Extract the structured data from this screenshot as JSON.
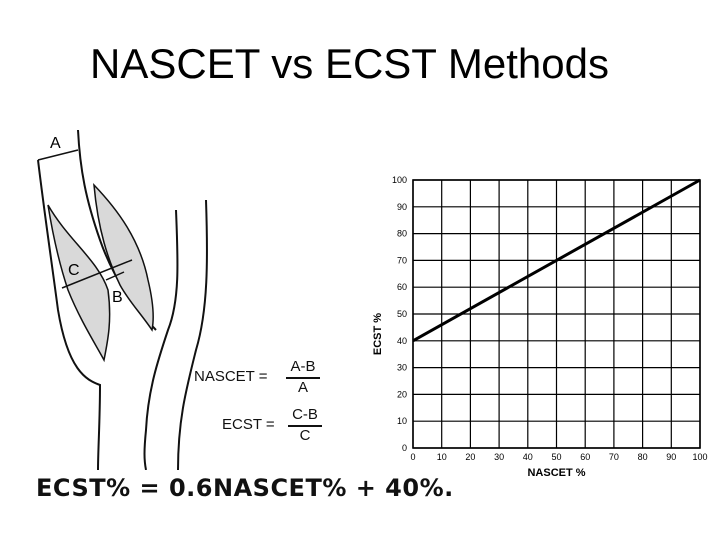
{
  "slide": {
    "title": "NASCET vs ECST Methods"
  },
  "diagram": {
    "labels": {
      "a": "A",
      "b": "B",
      "c": "C"
    }
  },
  "formulas": {
    "nascet": {
      "lhs": "NASCET =",
      "numerator": "A-B",
      "denominator": "A"
    },
    "ecst": {
      "lhs": "ECST =",
      "numerator": "C-B",
      "denominator": "C"
    },
    "conversion": "ECST% = 0.6NASCET% + 40%."
  },
  "chart_data": {
    "type": "line",
    "title": "",
    "xlabel": "NASCET %",
    "ylabel": "ECST %",
    "xlim": [
      0,
      100
    ],
    "ylim": [
      0,
      100
    ],
    "grid": true,
    "x_ticks": [
      0,
      10,
      20,
      30,
      40,
      50,
      60,
      70,
      80,
      90,
      100
    ],
    "y_ticks": [
      0,
      10,
      20,
      30,
      40,
      50,
      60,
      70,
      80,
      90,
      100
    ],
    "series": [
      {
        "x": [
          0,
          100
        ],
        "y": [
          40,
          100
        ]
      }
    ]
  },
  "colors": {
    "line": "#000000",
    "grid": "#000000",
    "diagram_fill": "#d9d9d9"
  }
}
